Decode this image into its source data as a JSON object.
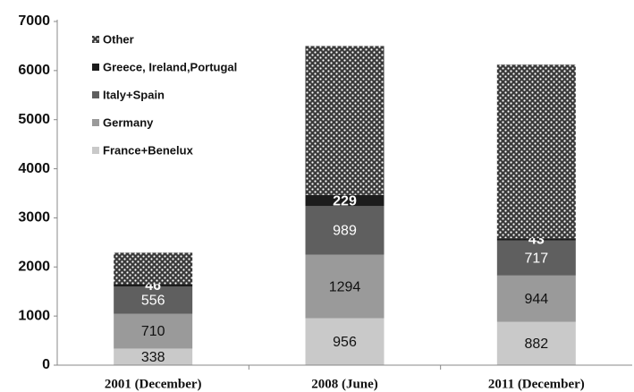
{
  "chart_data": {
    "type": "stacked_bar",
    "categories": [
      "2001 (December)",
      "2008 (June)",
      "2011 (December)"
    ],
    "series": [
      {
        "name": "France+Benelux",
        "color": "#c9c9c9",
        "label_color": "#111111",
        "values": [
          338,
          956,
          882
        ]
      },
      {
        "name": "Germany",
        "color": "#9a9a9a",
        "label_color": "#111111",
        "values": [
          710,
          1294,
          944
        ]
      },
      {
        "name": "Italy+Spain",
        "color": "#5f5f5f",
        "label_color": "#ffffff",
        "values": [
          556,
          989,
          717
        ]
      },
      {
        "name": "Greece, Ireland,Portugal",
        "color": "#1c1c1c",
        "label_color": "#ffffff",
        "label_bold": true,
        "values": [
          46,
          229,
          43
        ]
      },
      {
        "name": "Other",
        "color": "#3a3a3a",
        "pattern": "dots",
        "show_labels": false,
        "values": [
          640,
          3032,
          3534
        ]
      }
    ],
    "ylim": [
      0,
      7000
    ],
    "yticks": [
      0,
      1000,
      2000,
      3000,
      4000,
      5000,
      6000,
      7000
    ],
    "grid": false,
    "legend": "upper left"
  }
}
